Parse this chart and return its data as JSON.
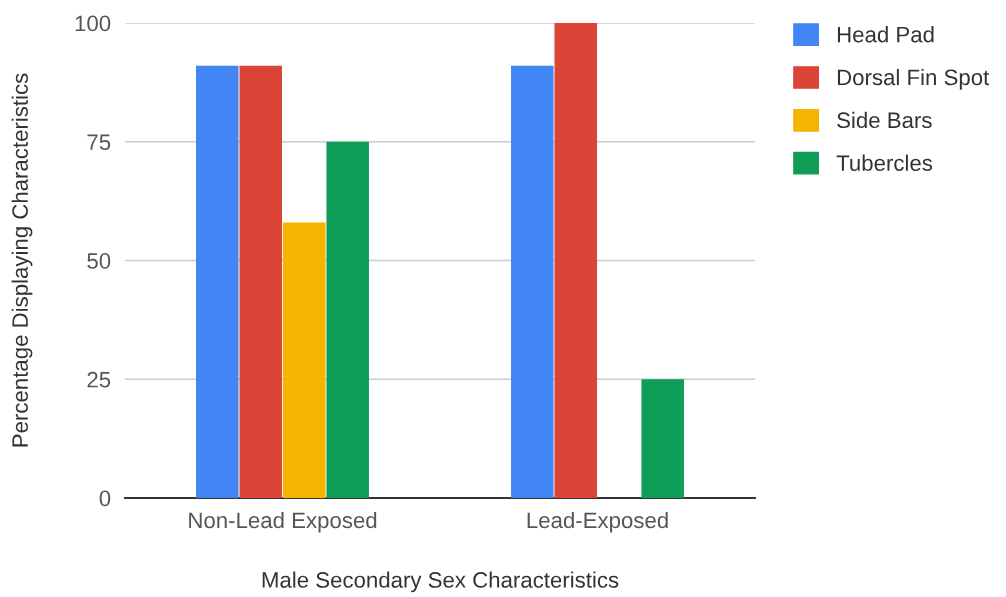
{
  "chart_data": {
    "type": "bar",
    "xlabel": "Male Secondary Sex Characteristics",
    "ylabel": "Percentage Displaying Characteristics",
    "categories": [
      "Non-Lead Exposed",
      "Lead-Exposed"
    ],
    "series": [
      {
        "name": "Head Pad",
        "color": "#4285f4",
        "values": [
          91,
          91
        ]
      },
      {
        "name": "Dorsal Fin Spot",
        "color": "#db4437",
        "values": [
          91,
          100
        ]
      },
      {
        "name": "Side Bars",
        "color": "#f4b400",
        "values": [
          58,
          null
        ]
      },
      {
        "name": "Tubercles",
        "color": "#0f9d58",
        "values": [
          75,
          25
        ]
      }
    ],
    "ylim": [
      0,
      100
    ],
    "yticks": [
      0,
      25,
      50,
      75,
      100
    ],
    "grid": "y",
    "legend": "top right"
  }
}
